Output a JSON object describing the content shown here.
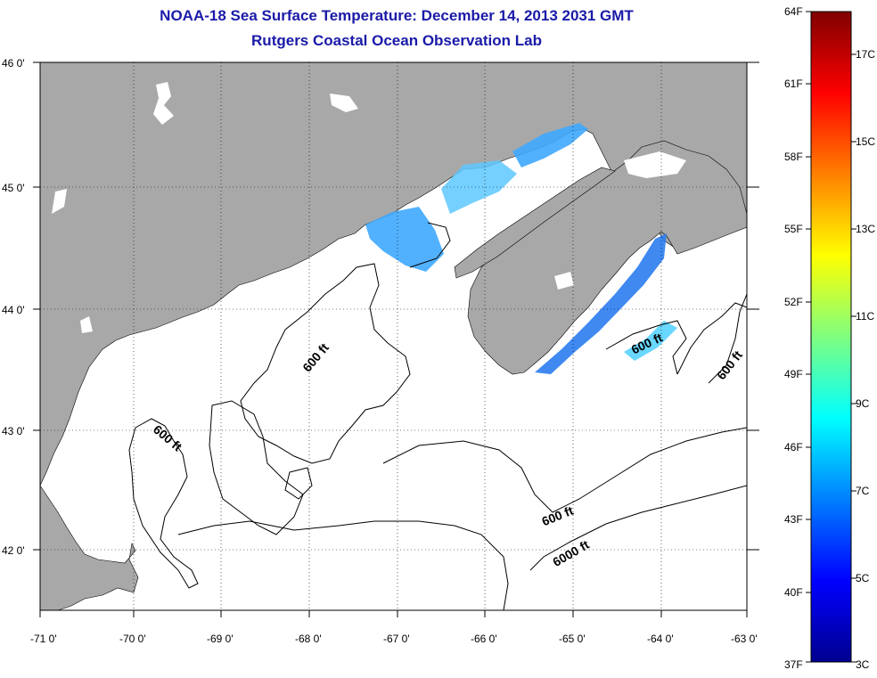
{
  "title": {
    "line1": "NOAA-18 Sea Surface Temperature:  December 14, 2013 2031 GMT",
    "line2": "Rutgers Coastal Ocean Observation Lab"
  },
  "axes": {
    "lon_labels": [
      "-71 0'",
      "-70 0'",
      "-69 0'",
      "-68 0'",
      "-67 0'",
      "-66 0'",
      "-65 0'",
      "-64 0'",
      "-63 0'"
    ],
    "lat_labels": [
      "46 0'",
      "45 0'",
      "44 0'",
      "43 0'",
      "42 0'"
    ],
    "lon_range": [
      -71,
      -63
    ],
    "lat_range": [
      41.5,
      46
    ]
  },
  "contours": {
    "label_600": "600 ft",
    "label_6000": "6000 ft"
  },
  "colorbar": {
    "fahrenheit": [
      "64F",
      "61F",
      "58F",
      "55F",
      "52F",
      "49F",
      "46F",
      "43F",
      "40F",
      "37F"
    ],
    "celsius": [
      "17C",
      "15C",
      "13C",
      "11C",
      "9C",
      "7C",
      "5C",
      "3C"
    ],
    "range_f": [
      37,
      64
    ],
    "scale": "jet"
  },
  "colors": {
    "land": "#a8a8a8",
    "title": "#1a1aa8",
    "warm_water": "#3fa8ff"
  }
}
